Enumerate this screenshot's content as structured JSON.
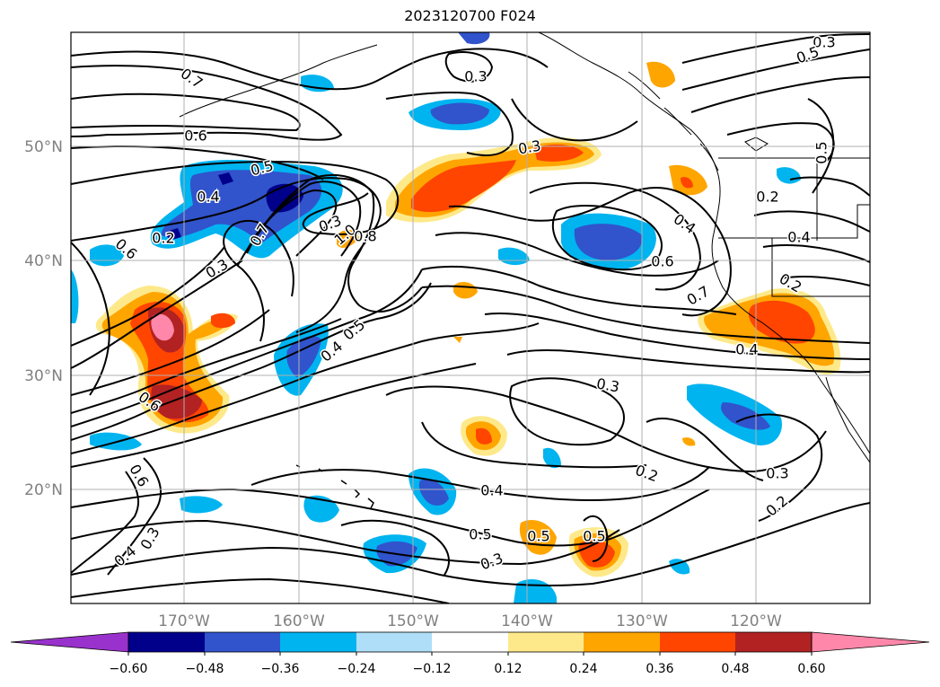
{
  "title": "2023120700 F024",
  "lat_labels": [
    "50°N",
    "40°N",
    "30°N",
    "20°N"
  ],
  "lon_labels": [
    "170°W",
    "160°W",
    "150°W",
    "140°W",
    "130°W",
    "120°W"
  ],
  "contour_labels": [
    "0.7",
    "0.6",
    "0.5",
    "0.4",
    "0.3",
    "0.2",
    "1.0",
    "0.8",
    "0.5",
    "0.4",
    "0.3",
    "0.6",
    "0.7",
    "0.3",
    "0.2",
    "0.4",
    "0.5",
    "0.3",
    "0.2",
    "0.3",
    "0.2",
    "0.4",
    "0.5",
    "0.3",
    "0.2",
    "0.4",
    "0.3",
    "0.5",
    "0.4",
    "0.3",
    "0.6",
    "0.6",
    "0.6",
    "0.7",
    "0.3",
    "0.4",
    "0.5",
    "0.5"
  ],
  "colorbar": {
    "ticks": [
      "−0.60",
      "−0.48",
      "−0.36",
      "−0.24",
      "−0.12",
      "0.12",
      "0.24",
      "0.36",
      "0.48",
      "0.60"
    ],
    "colors": {
      "under": "#9932cc",
      "c1": "#00008b",
      "c2": "#3153cc",
      "c3": "#00b4f0",
      "c4": "#afdff8",
      "c5": "#ffffff",
      "c6": "#fee98a",
      "c7": "#ffa500",
      "c8": "#ff4500",
      "c9": "#b22222",
      "over": "#ff88aa"
    }
  }
}
